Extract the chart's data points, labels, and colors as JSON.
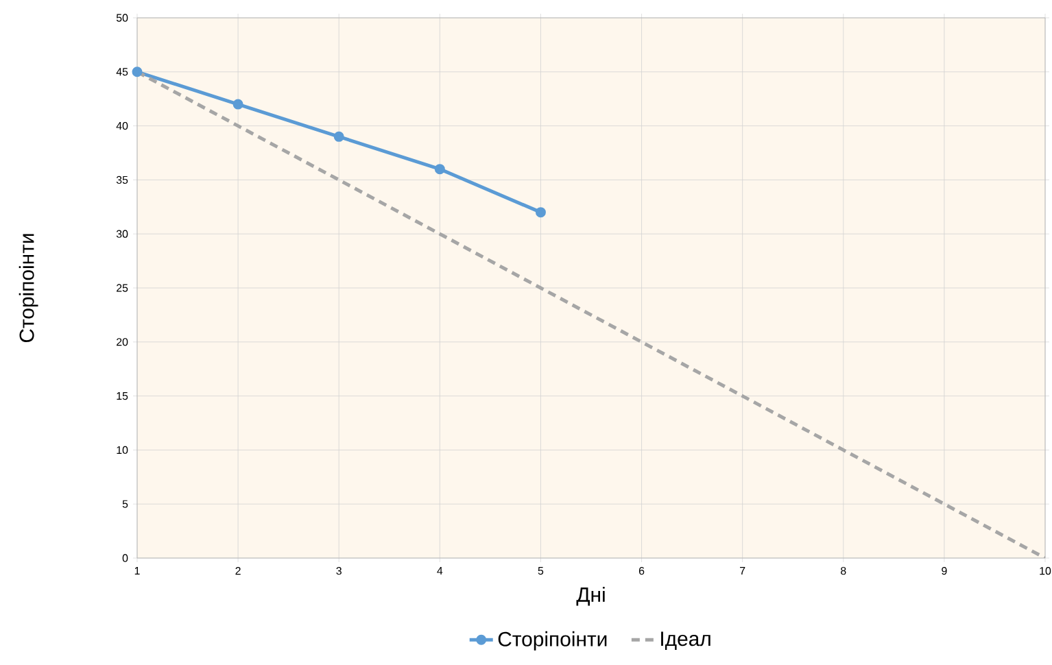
{
  "chart_data": {
    "type": "line",
    "xlabel": "Дні",
    "ylabel": "Сторіпоінти",
    "xlim": [
      1,
      10
    ],
    "ylim": [
      0,
      50
    ],
    "xticks": [
      1,
      2,
      3,
      4,
      5,
      6,
      7,
      8,
      9,
      10
    ],
    "yticks": [
      0,
      5,
      10,
      15,
      20,
      25,
      30,
      35,
      40,
      45,
      50
    ],
    "grid": true,
    "legend": "bottom",
    "series": [
      {
        "name": "Сторіпоінти",
        "color": "#5b9bd5",
        "x": [
          1,
          2,
          3,
          4,
          5
        ],
        "values": [
          45,
          42,
          39,
          36,
          32
        ],
        "marker": "circle",
        "line_style": "solid"
      },
      {
        "name": "Ідеал",
        "color": "#a6a6a6",
        "x": [
          1,
          2,
          3,
          4,
          5,
          6,
          7,
          8,
          9,
          10
        ],
        "values": [
          45,
          40,
          35,
          30,
          25,
          20,
          15,
          10,
          5,
          0
        ],
        "marker": "none",
        "line_style": "dashed"
      }
    ]
  }
}
